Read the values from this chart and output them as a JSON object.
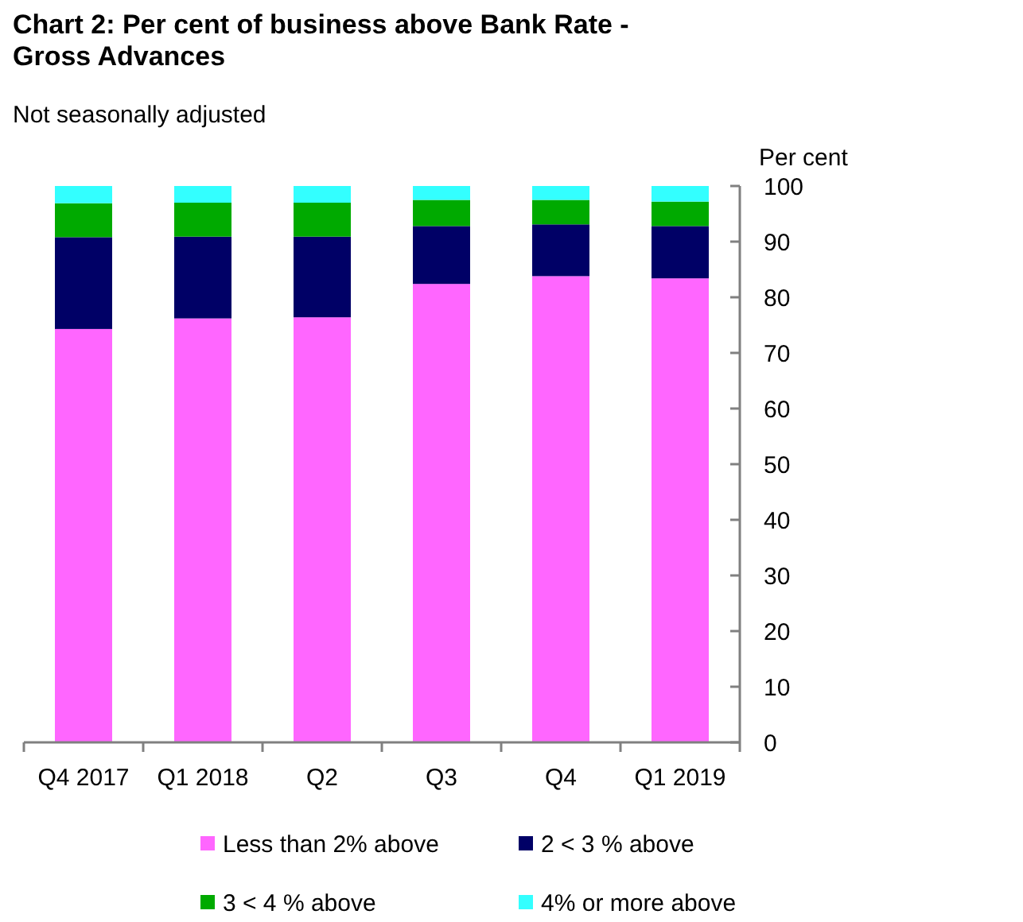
{
  "chart_data": {
    "type": "bar",
    "stacked": true,
    "title": "Chart 2: Per cent of business above Bank Rate - Gross Advances",
    "subtitle": "Not seasonally adjusted",
    "ylabel": "Per cent",
    "categories": [
      "Q4 2017",
      "Q1 2018",
      "Q2",
      "Q3",
      "Q4",
      "Q1 2019"
    ],
    "series": [
      {
        "name": "Less than 2% above",
        "color": "#ff66ff",
        "values": [
          74.3,
          76.2,
          76.4,
          82.4,
          83.8,
          83.4
        ]
      },
      {
        "name": "2 < 3 % above",
        "color": "#000066",
        "values": [
          16.5,
          14.7,
          14.5,
          10.4,
          9.3,
          9.4
        ]
      },
      {
        "name": "3 < 4 % above",
        "color": "#00aa00",
        "values": [
          6.1,
          6.1,
          6.1,
          4.7,
          4.4,
          4.4
        ]
      },
      {
        "name": "4% or more above",
        "color": "#33ffff",
        "values": [
          3.1,
          3.0,
          3.0,
          2.5,
          2.5,
          2.8
        ]
      }
    ],
    "ylim": [
      0,
      100
    ],
    "yticks": [
      0,
      10,
      20,
      30,
      40,
      50,
      60,
      70,
      80,
      90,
      100
    ],
    "grid": false,
    "legend": "bottom"
  }
}
